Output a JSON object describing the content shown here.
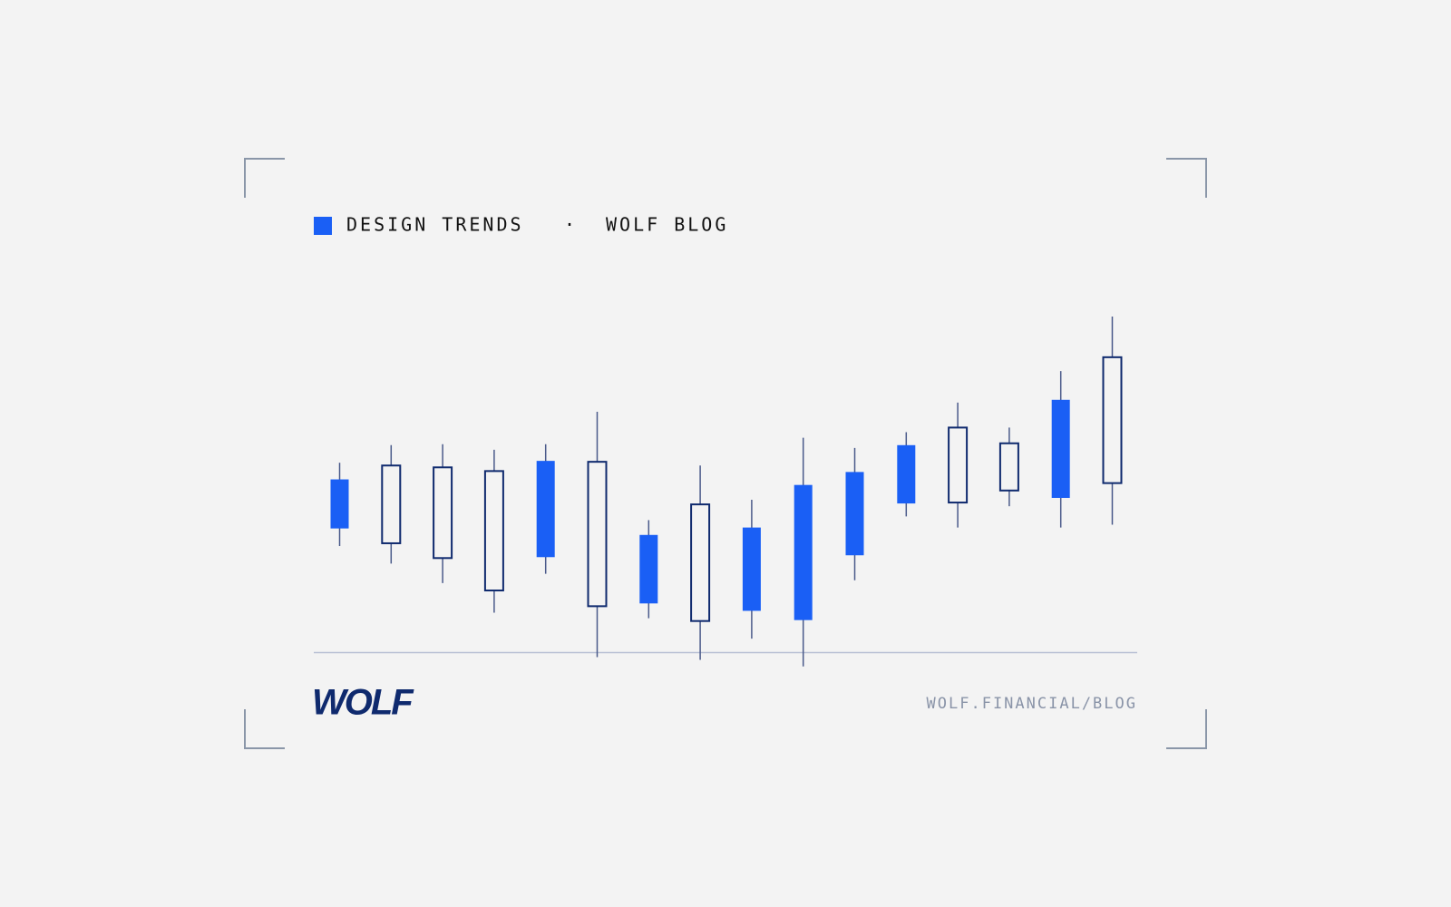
{
  "header": {
    "tag": "DESIGN TRENDS",
    "separator": "·",
    "blog": "WOLF BLOG"
  },
  "footer": {
    "logo": "WOLF",
    "url": "WOLF.FINANCIAL/BLOG"
  },
  "chart_data": {
    "type": "candlestick",
    "categories": [
      null,
      null,
      null,
      null,
      null,
      null,
      null,
      null,
      null,
      null,
      null,
      null,
      null,
      null,
      null,
      null
    ],
    "open": [
      187,
      118,
      102,
      67,
      207,
      50,
      127,
      34,
      135,
      181,
      195,
      224,
      162,
      175,
      273,
      183
    ],
    "high": [
      205,
      224,
      225,
      219,
      225,
      260,
      143,
      202,
      165,
      232,
      221,
      238,
      270,
      243,
      304,
      363
    ],
    "low": [
      115,
      96,
      75,
      43,
      85,
      -5,
      37,
      -8,
      15,
      -15,
      78,
      147,
      135,
      158,
      135,
      138
    ],
    "close": [
      134,
      202,
      200,
      196,
      103,
      206,
      53,
      160,
      45,
      35,
      105,
      161,
      243,
      226,
      167,
      319
    ],
    "up_color": "#0f2a6e",
    "down_color": "#1a5ff5",
    "wick_color": "#4a5a8a",
    "ylim": [
      -30,
      370
    ]
  }
}
